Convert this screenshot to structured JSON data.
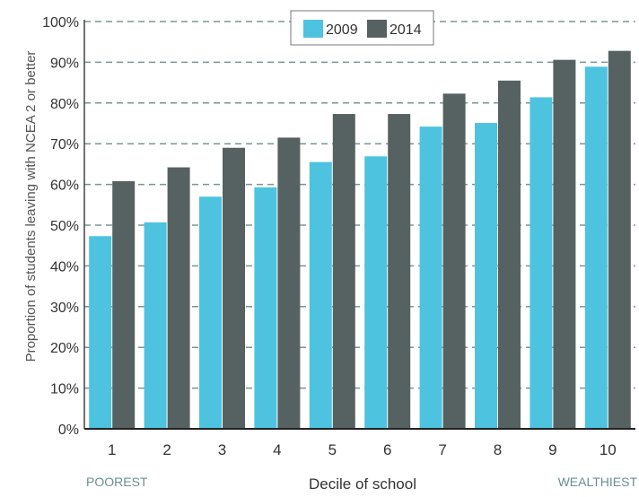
{
  "chart_data": {
    "type": "bar",
    "title": "",
    "xlabel": "Decile of school",
    "ylabel": "Proportion of students leaving with NCEA 2 or better",
    "x_end_labels": {
      "left": "POOREST",
      "right": "WEALTHIEST"
    },
    "categories": [
      "1",
      "2",
      "3",
      "4",
      "5",
      "6",
      "7",
      "8",
      "9",
      "10"
    ],
    "series": [
      {
        "name": "2009",
        "color": "#4dc3df",
        "values": [
          47.3,
          50.7,
          57.0,
          59.3,
          65.5,
          66.9,
          74.2,
          75.1,
          81.4,
          88.9
        ]
      },
      {
        "name": "2014",
        "color": "#566261",
        "values": [
          60.8,
          64.2,
          69.0,
          71.5,
          77.3,
          77.3,
          82.3,
          85.5,
          90.6,
          92.8
        ]
      }
    ],
    "ylim": [
      0,
      100
    ],
    "yticks": [
      0,
      10,
      20,
      30,
      40,
      50,
      60,
      70,
      80,
      90,
      100
    ],
    "ytick_suffix": "%",
    "grid": true,
    "grid_style": "dashed",
    "grid_color": "#7a9593",
    "legend_position": "top-center"
  }
}
